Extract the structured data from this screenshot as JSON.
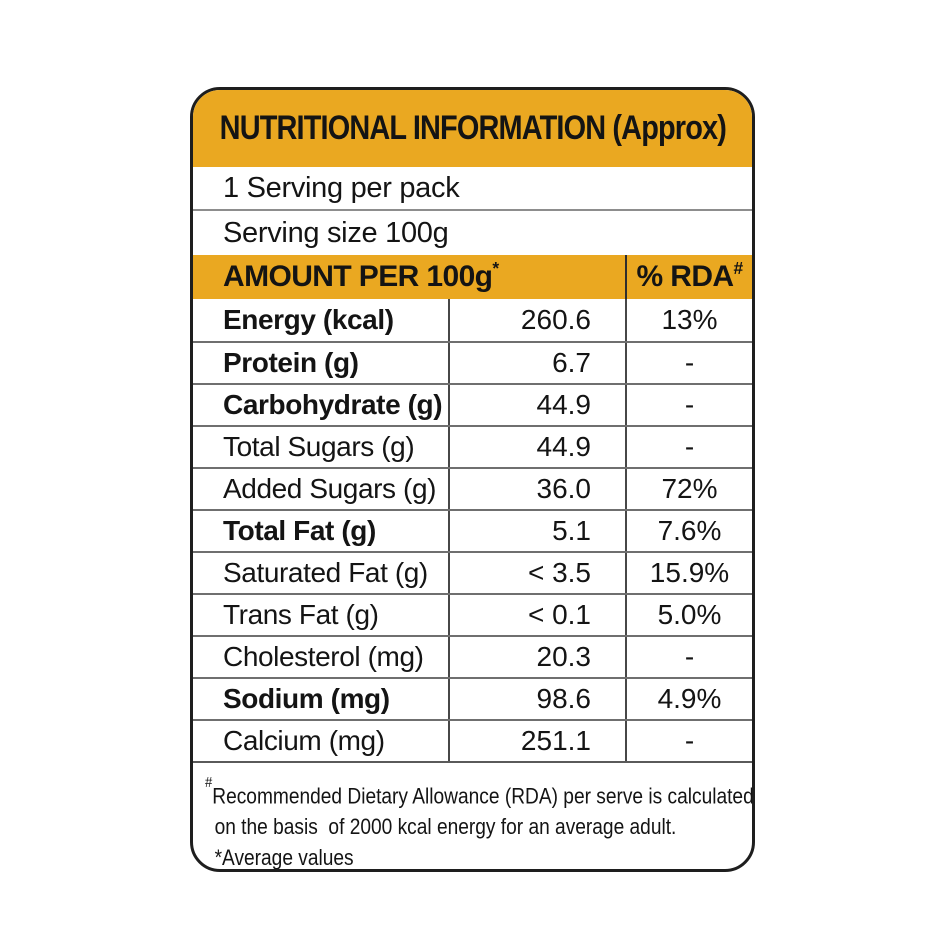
{
  "label_card": {
    "title": "NUTRITIONAL INFORMATION (Approx)",
    "serving_info": {
      "servings_per_pack": "1 Serving per pack",
      "serving_size": "Serving size 100g"
    },
    "table": {
      "amount_header": "AMOUNT PER 100g",
      "amount_header_sup": "*",
      "rda_header": "% RDA",
      "rda_header_sup": "#",
      "rows": [
        {
          "label": "Energy (kcal)",
          "amount": "260.6",
          "rda": "13%"
        },
        {
          "label": "Protein (g)",
          "amount": "6.7",
          "rda": "-"
        },
        {
          "label": "Carbohydrate (g)",
          "amount": "44.9",
          "rda": "-"
        },
        {
          "label": "Total Sugars (g)",
          "amount": "44.9",
          "rda": "-"
        },
        {
          "label": "Added Sugars (g)",
          "amount": "36.0",
          "rda": "72%"
        },
        {
          "label": "Total Fat (g)",
          "amount": "5.1",
          "rda": "7.6%"
        },
        {
          "label": "Saturated Fat (g)",
          "amount": "< 3.5",
          "rda": "15.9%"
        },
        {
          "label": "Trans Fat (g)",
          "amount": "< 0.1",
          "rda": "5.0%"
        },
        {
          "label": "Cholesterol (mg)",
          "amount": "20.3",
          "rda": "-"
        },
        {
          "label": "Sodium (mg)",
          "amount": "98.6",
          "rda": "4.9%"
        },
        {
          "label": "Calcium (mg)",
          "amount": "251.1",
          "rda": "-"
        }
      ]
    },
    "footnote": {
      "marker": "#",
      "line1": "Recommended Dietary Allowance (RDA) per serve is calculated",
      "line2": "on the basis  of 2000 kcal energy for an average adult.",
      "line3": "*Average values"
    },
    "colors": {
      "accent_yellow": "#EAA821",
      "text": "#141414",
      "border": "#1e1e1e"
    }
  }
}
